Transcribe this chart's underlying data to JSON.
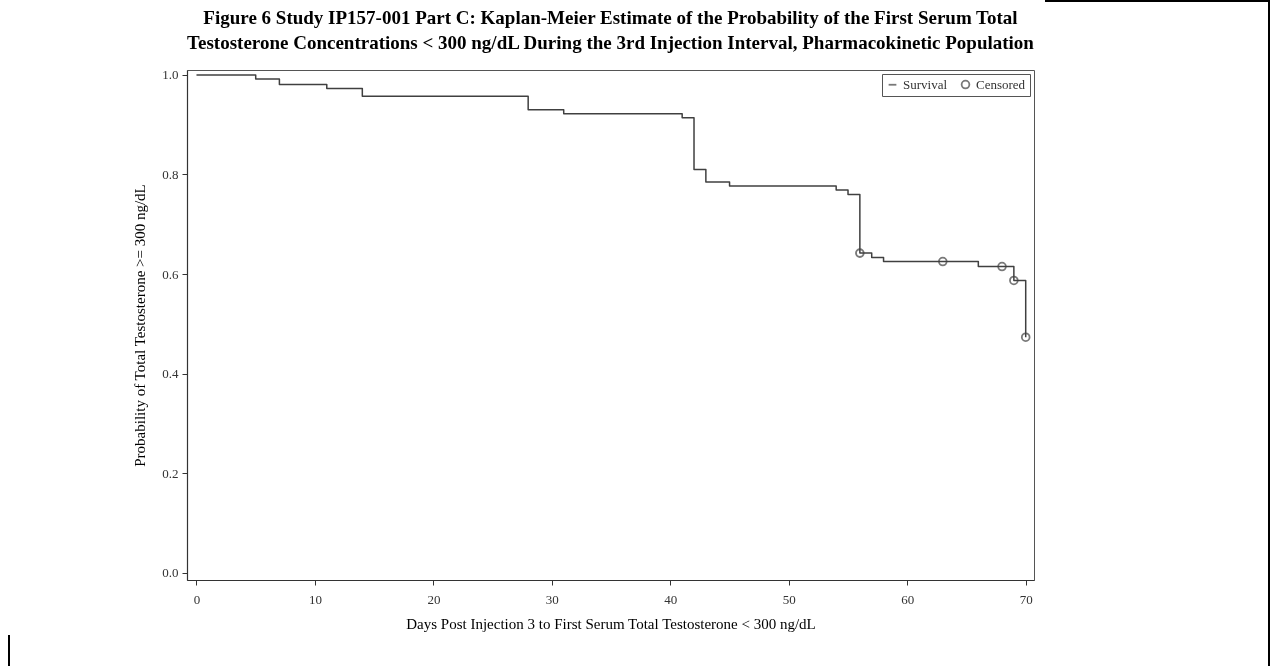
{
  "chart_data": {
    "type": "step",
    "title": "Figure 6 Study IP157-001 Part C: Kaplan-Meier Estimate of the Probability of the First Serum Total\nTestosterone Concentrations < 300 ng/dL During the 3rd Injection Interval, Pharmacokinetic Population",
    "xlabel": "Days Post Injection 3 to First Serum Total Testosterone < 300 ng/dL",
    "ylabel": "Probability of Total Testosterone >= 300 ng/dL",
    "xlim": [
      -0.8,
      70.7
    ],
    "xticks": [
      0,
      10,
      20,
      30,
      40,
      50,
      60,
      70
    ],
    "ylim": [
      -0.015,
      1.01
    ],
    "yticks": [
      {
        "value": 0,
        "label": "0.0"
      },
      0.2,
      0.4,
      0.6,
      0.8,
      {
        "value": 1,
        "label": "1.0"
      }
    ],
    "legend": "top right",
    "grid": false,
    "series": [
      {
        "name": "Survival",
        "color": "#404040",
        "marker": "none",
        "x": [
          0,
          5,
          7,
          11,
          14,
          28,
          31,
          41,
          42,
          43,
          45,
          54,
          55,
          56,
          57,
          58,
          63,
          66,
          68,
          69,
          70
        ],
        "values": [
          1.0,
          0.992,
          0.981,
          0.973,
          0.957,
          0.93,
          0.922,
          0.914,
          0.81,
          0.785,
          0.777,
          0.769,
          0.76,
          0.642,
          0.633,
          0.625,
          0.625,
          0.615,
          0.615,
          0.587,
          0.473
        ]
      },
      {
        "name": "Censored",
        "type": "scatter",
        "color": "#404040",
        "marker": "circle",
        "x": [
          56,
          63,
          68,
          69,
          70
        ],
        "values": [
          0.642,
          0.625,
          0.615,
          0.587,
          0.473
        ]
      }
    ]
  }
}
